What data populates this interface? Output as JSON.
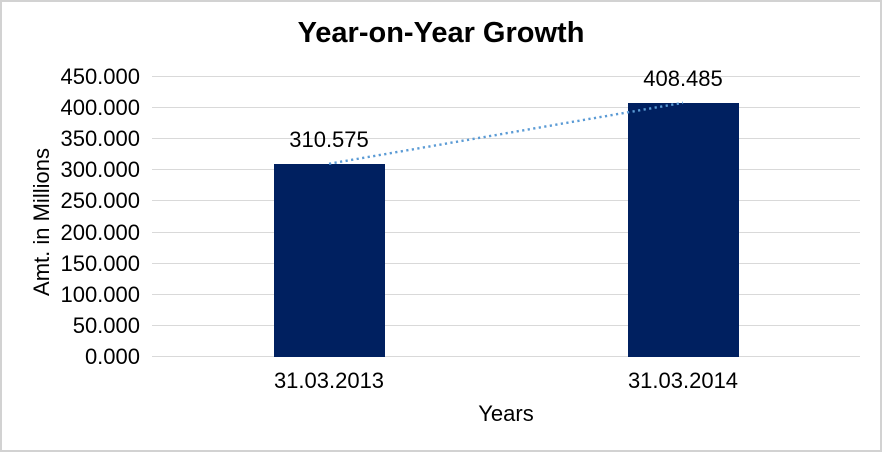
{
  "chart": {
    "border_color": "#d2d2d2",
    "background": "#ffffff",
    "colors": {
      "bar": "#002060",
      "trendline": "#5b9bd5",
      "gridline": "#d9d9d9",
      "text": "#000000"
    }
  },
  "chart_data": {
    "type": "bar",
    "title": "Year-on-Year Growth",
    "xlabel": "Years",
    "ylabel": "Amt. in Millions",
    "categories": [
      "31.03.2013",
      "31.03.2014"
    ],
    "values": [
      310.575,
      408.485
    ],
    "value_labels": [
      "310.575",
      "408.485"
    ],
    "ylim": [
      0,
      450
    ],
    "y_ticks": [
      0,
      50,
      100,
      150,
      200,
      250,
      300,
      350,
      400,
      450
    ],
    "y_tick_labels": [
      "0.000",
      "50.000",
      "100.000",
      "150.000",
      "200.000",
      "250.000",
      "300.000",
      "350.000",
      "400.000",
      "450.000"
    ],
    "grid": true,
    "legend": false,
    "trendline": {
      "style": "dotted",
      "color": "#5b9bd5",
      "from_value": 310.575,
      "to_value": 408.485
    }
  }
}
